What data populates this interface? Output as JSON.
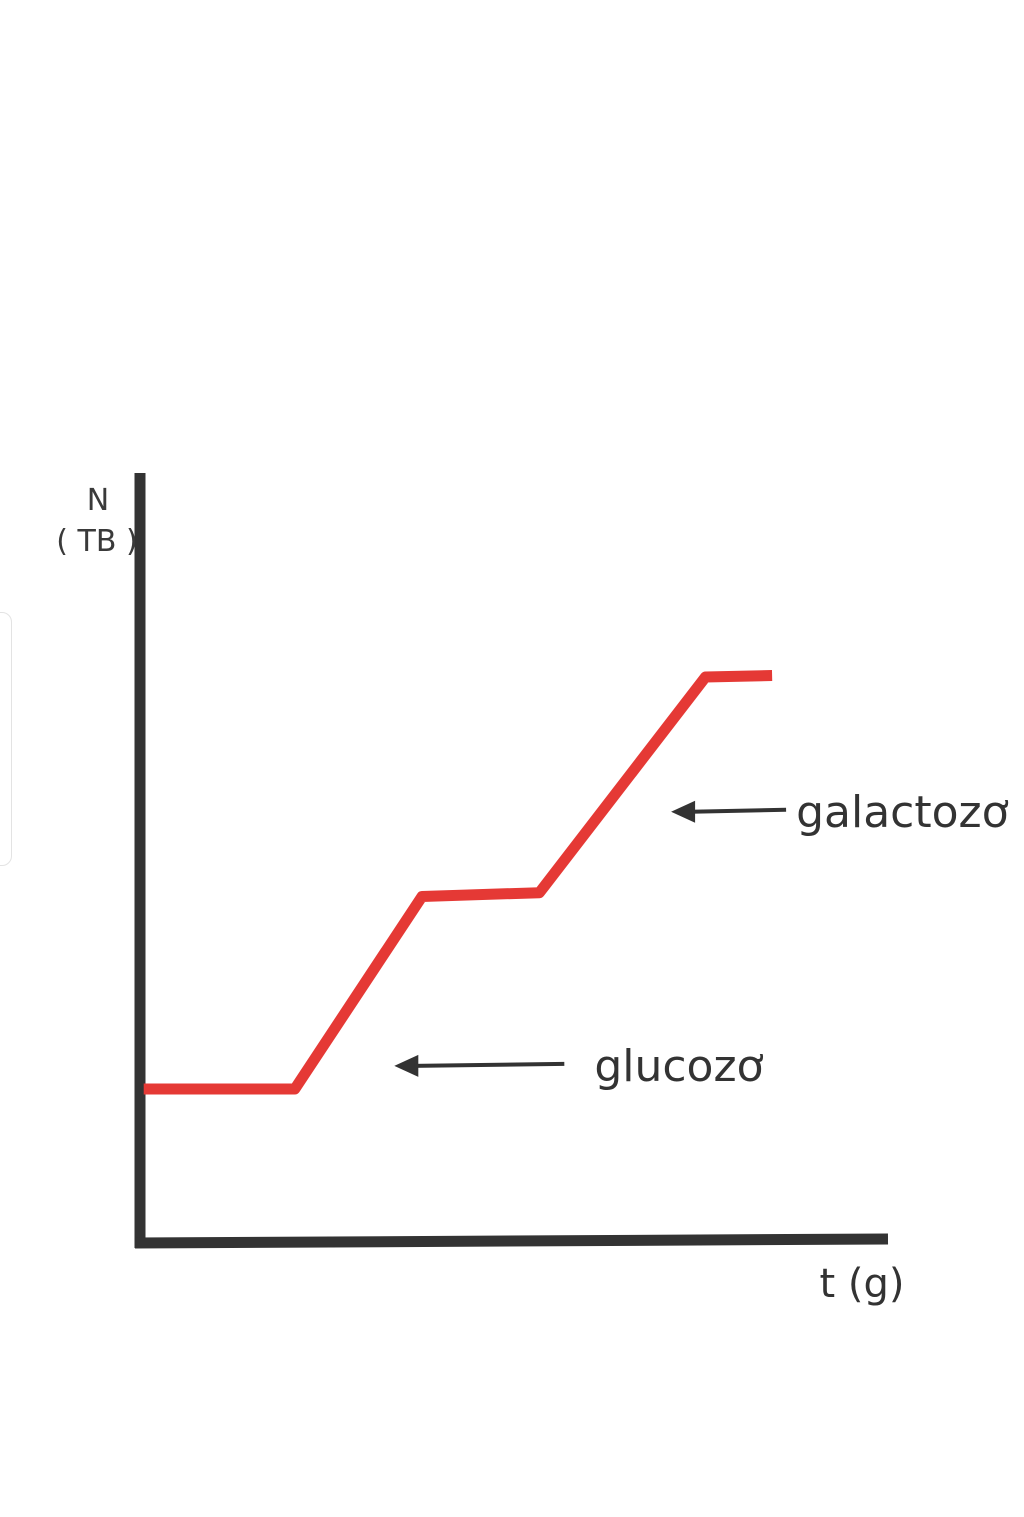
{
  "chart_data": {
    "type": "line",
    "ylabel_line1": "N",
    "ylabel_line2": "( TB )",
    "xlabel": "t (g)",
    "axis_color": "#333333",
    "series_color": "#e53935",
    "xlim": [
      0,
      10
    ],
    "ylim": [
      0,
      10
    ],
    "series": [
      {
        "points": [
          {
            "x": 0.05,
            "y": 2.0
          },
          {
            "x": 2.07,
            "y": 2.0
          },
          {
            "x": 3.77,
            "y": 4.5
          },
          {
            "x": 5.34,
            "y": 4.55
          },
          {
            "x": 7.56,
            "y": 7.35
          },
          {
            "x": 8.45,
            "y": 7.37
          }
        ]
      }
    ],
    "annotations": [
      {
        "text": "galactozơ",
        "arrow": "left",
        "target_x": 7.1,
        "target_y": 5.6
      },
      {
        "text": "glucozơ",
        "arrow": "left",
        "target_x": 3.4,
        "target_y": 2.3
      }
    ]
  }
}
